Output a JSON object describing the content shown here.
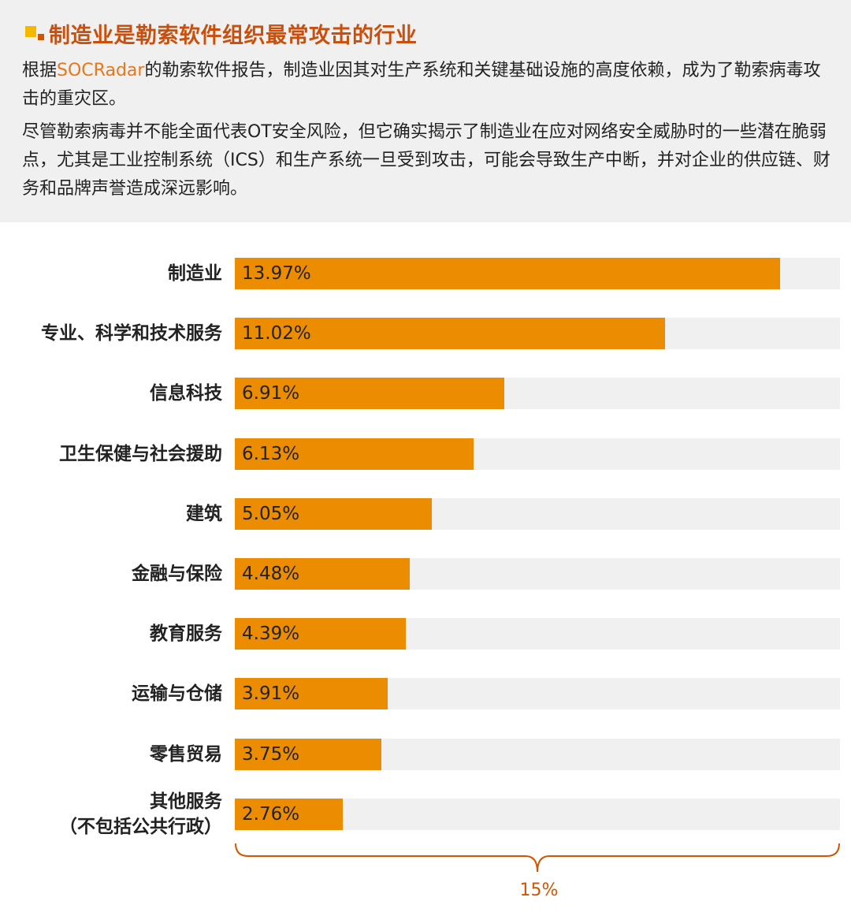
{
  "header": {
    "title": "制造业是勒索软件组织最常攻击的行业",
    "p1_before": "根据",
    "p1_highlight": "SOCRadar",
    "p1_after": "的勒索软件报告，制造业因其对生产系统和关键基础设施的高度依赖，成为了勒索病毒攻击的重灾区。",
    "p2": "尽管勒索病毒并不能全面代表OT安全风险，但它确实揭示了制造业在应对网络安全威胁时的一些潜在脆弱点，尤其是工业控制系统（ICS）和生产系统一旦受到攻击，可能会导致生产中断，并对企业的供应链、财务和品牌声誉造成深远影响。"
  },
  "chart_data": {
    "type": "bar",
    "orientation": "horizontal",
    "categories": [
      "制造业",
      "专业、科学和技术服务",
      "信息科技",
      "卫生保健与社会援助",
      "建筑",
      "金融与保险",
      "教育服务",
      "运输与仓储",
      "零售贸易",
      "其他服务（不包括公共行政）"
    ],
    "category_lines": [
      [
        "制造业"
      ],
      [
        "专业、科学和技术服务"
      ],
      [
        "信息科技"
      ],
      [
        "卫生保健与社会援助"
      ],
      [
        "建筑"
      ],
      [
        "金融与保险"
      ],
      [
        "教育服务"
      ],
      [
        "运输与仓储"
      ],
      [
        "零售贸易"
      ],
      [
        "其他服务",
        "（不包括公共行政）"
      ]
    ],
    "values": [
      13.97,
      11.02,
      6.91,
      6.13,
      5.05,
      4.48,
      4.39,
      3.91,
      3.75,
      2.76
    ],
    "labels": [
      "13.97%",
      "11.02%",
      "6.91%",
      "6.13%",
      "5.05%",
      "4.48%",
      "4.39%",
      "3.91%",
      "3.75%",
      "2.76%"
    ],
    "xlim": [
      0,
      15
    ],
    "scale_label": "15%",
    "colors": {
      "bar": "#ec8c00",
      "track": "#f0f0f0",
      "brace": "#d35400"
    }
  }
}
